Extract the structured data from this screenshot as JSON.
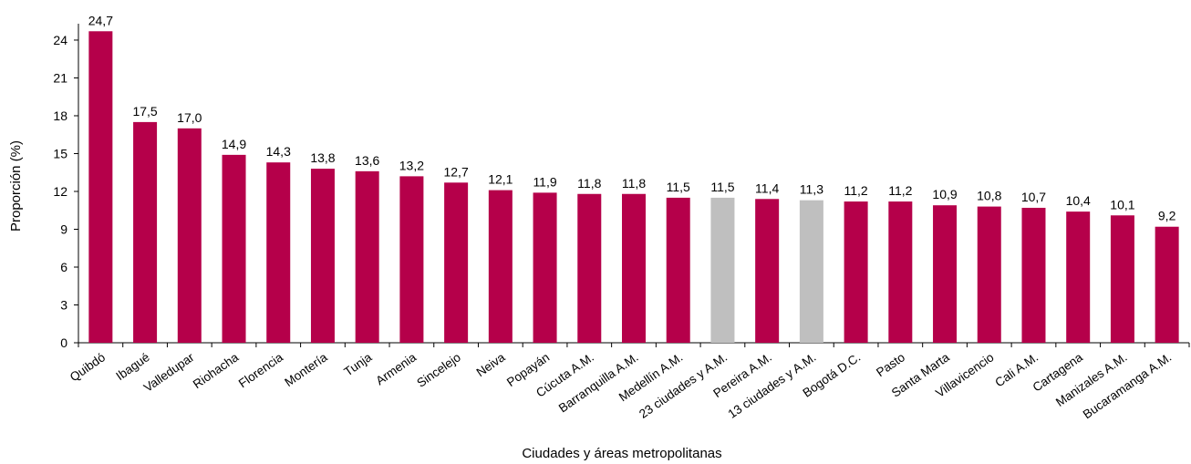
{
  "chart_data": {
    "type": "bar",
    "xlabel": "Ciudades y áreas metropolitanas",
    "ylabel": "Proporción (%)",
    "ylim": [
      0,
      26
    ],
    "yticks": [
      0,
      3,
      6,
      9,
      12,
      15,
      18,
      21,
      24
    ],
    "grid": false,
    "colors": {
      "bar": "#b5004a",
      "highlight": "#bfbfbf",
      "axis": "#000000"
    },
    "categories": [
      "Quibdó",
      "Ibagué",
      "Valledupar",
      "Riohacha",
      "Florencia",
      "Montería",
      "Tunja",
      "Armenia",
      "Sincelejo",
      "Neiva",
      "Popayán",
      "Cúcuta A.M.",
      "Barranquilla A.M.",
      "Medellín A.M.",
      "23 ciudades y A.M.",
      "Pereira A.M.",
      "13 ciudades y A.M.",
      "Bogotá D.C.",
      "Pasto",
      "Santa Marta",
      "Villavicencio",
      "Cali A.M.",
      "Cartagena",
      "Manizales A.M.",
      "Bucaramanga A.M."
    ],
    "values": [
      24.7,
      17.5,
      17.0,
      14.9,
      14.3,
      13.8,
      13.6,
      13.2,
      12.7,
      12.1,
      11.9,
      11.8,
      11.8,
      11.5,
      11.5,
      11.4,
      11.3,
      11.2,
      11.2,
      10.9,
      10.8,
      10.7,
      10.4,
      10.1,
      9.2
    ],
    "value_labels": [
      "24,7",
      "17,5",
      "17,0",
      "14,9",
      "14,3",
      "13,8",
      "13,6",
      "13,2",
      "12,7",
      "12,1",
      "11,9",
      "11,8",
      "11,8",
      "11,5",
      "11,5",
      "11,4",
      "11,3",
      "11,2",
      "11,2",
      "10,9",
      "10,8",
      "10,7",
      "10,4",
      "10,1",
      "9,2"
    ],
    "highlighted": [
      "23 ciudades y A.M.",
      "13 ciudades y A.M."
    ]
  }
}
